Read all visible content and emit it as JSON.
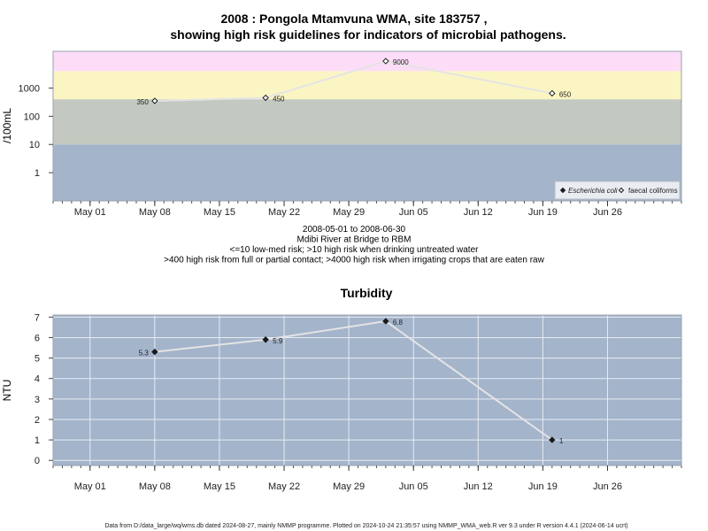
{
  "chart_data": [
    {
      "type": "line",
      "title": "2008 : Pongola Mtamvuna WMA, site 183757 ,",
      "subtitle": "showing high risk guidelines for indicators of microbial pathogens.",
      "ylabel": "/100mL",
      "yscale": "log",
      "ylim": [
        0.1,
        20000
      ],
      "yticks": [
        1,
        10,
        100,
        1000
      ],
      "ytick_labels": [
        "1",
        "10",
        "100",
        "1000"
      ],
      "xlim": [
        "2008-04-27",
        "2008-07-04"
      ],
      "xticks": [
        "2008-05-01",
        "2008-05-08",
        "2008-05-15",
        "2008-05-22",
        "2008-05-29",
        "2008-06-05",
        "2008-06-12",
        "2008-06-19",
        "2008-06-26"
      ],
      "xtick_labels": [
        "May 01",
        "May 08",
        "May 15",
        "May 22",
        "May 29",
        "Jun 05",
        "Jun 12",
        "Jun 19",
        "Jun 26"
      ],
      "risk_bands": [
        {
          "from": 0.1,
          "to": 10,
          "color": "#a3b4cb"
        },
        {
          "from": 10,
          "to": 400,
          "color": "#c3c9c1"
        },
        {
          "from": 400,
          "to": 4000,
          "color": "#fbf5c4"
        },
        {
          "from": 4000,
          "to": 20000,
          "color": "#fcdcf6"
        }
      ],
      "series": [
        {
          "name": "faecal coliforms",
          "marker": "open-diamond",
          "x": [
            "2008-05-08",
            "2008-05-20",
            "2008-06-02",
            "2008-06-20"
          ],
          "values": [
            350,
            450,
            9000,
            650
          ],
          "labels": [
            "350",
            "450",
            "9000",
            "650"
          ]
        }
      ],
      "legend": {
        "position": "bottom-right",
        "entries": [
          {
            "label": "Escherichia coli",
            "marker": "filled-diamond",
            "italic": true
          },
          {
            "label": "faecal coliforms",
            "marker": "open-diamond",
            "italic": false
          }
        ]
      },
      "notes": [
        "2008-05-01 to 2008-06-30",
        "Mdibi River at Bridge to RBM",
        "<=10 low-med risk; >10 high risk when drinking untreated water",
        ">400 high risk from full or partial contact; >4000 high risk when irrigating crops that are eaten raw"
      ]
    },
    {
      "type": "line",
      "title": "Turbidity",
      "ylabel": "NTU",
      "ylim": [
        -0.25,
        7.1
      ],
      "yticks": [
        0,
        1,
        2,
        3,
        4,
        5,
        6,
        7
      ],
      "ytick_labels": [
        "0",
        "1",
        "2",
        "3",
        "4",
        "5",
        "6",
        "7"
      ],
      "xlim": [
        "2008-04-27",
        "2008-07-04"
      ],
      "xticks": [
        "2008-05-01",
        "2008-05-08",
        "2008-05-15",
        "2008-05-22",
        "2008-05-29",
        "2008-06-05",
        "2008-06-12",
        "2008-06-19",
        "2008-06-26"
      ],
      "xtick_labels": [
        "May 01",
        "May 08",
        "May 15",
        "May 22",
        "May 29",
        "Jun 05",
        "Jun 12",
        "Jun 19",
        "Jun 26"
      ],
      "series": [
        {
          "marker": "filled-diamond",
          "x": [
            "2008-05-08",
            "2008-05-20",
            "2008-06-02",
            "2008-06-20"
          ],
          "values": [
            5.3,
            5.9,
            6.8,
            1
          ],
          "labels": [
            "5.3",
            "5.9",
            "6.8",
            "1"
          ]
        }
      ],
      "background": "#a3b4cb",
      "grid": true
    }
  ],
  "footer": "Data from D:/data_large/wq/wms.db dated 2024-08-27, mainly NMMP programme. Plotted on 2024-10-24 21:35:57 using NMMP_WMA_web.R ver 9.3 under R version 4.4.1 (2024-06-14 ucrt)",
  "colors": {
    "line": "#e4e4e4",
    "grid": "#e8ecf2",
    "frame": "#9aa3ad"
  }
}
